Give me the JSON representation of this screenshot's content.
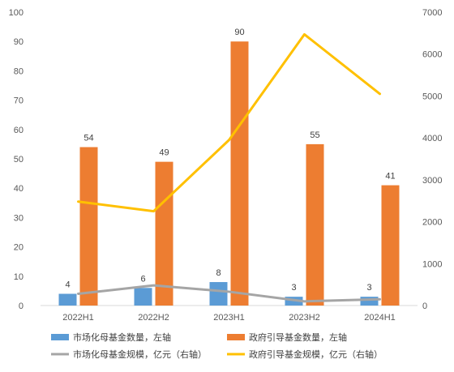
{
  "chart_data": {
    "type": "bar",
    "categories": [
      "2022H1",
      "2022H2",
      "2023H1",
      "2023H2",
      "2024H1"
    ],
    "series": [
      {
        "name": "市场化母基金数量，左轴",
        "type": "bar",
        "axis": "left",
        "color": "#5B9BD5",
        "values": [
          4,
          6,
          8,
          3,
          3
        ]
      },
      {
        "name": "政府引导基金数量，左轴",
        "type": "bar",
        "axis": "left",
        "color": "#ED7D31",
        "values": [
          54,
          49,
          90,
          55,
          41
        ]
      },
      {
        "name": "市场化母基金规模，亿元（右轴）",
        "type": "line",
        "axis": "right",
        "color": "#A5A5A5",
        "values": [
          280,
          480,
          330,
          100,
          150
        ]
      },
      {
        "name": "政府引导基金规模，亿元（右轴）",
        "type": "line",
        "axis": "right",
        "color": "#FFC000",
        "values": [
          2480,
          2250,
          3950,
          6470,
          5050
        ]
      }
    ],
    "left_axis": {
      "ylim": [
        0,
        100
      ],
      "ticks": [
        "0",
        "10",
        "20",
        "30",
        "40",
        "50",
        "60",
        "70",
        "80",
        "90",
        "100"
      ]
    },
    "right_axis": {
      "ylim": [
        0,
        7000
      ],
      "ticks": [
        "0",
        "1000",
        "2000",
        "3000",
        "4000",
        "5000",
        "6000",
        "7000"
      ]
    },
    "bar_data_labels": [
      [
        "4",
        "6",
        "8",
        "3",
        "3"
      ],
      [
        "54",
        "49",
        "90",
        "55",
        "41"
      ]
    ],
    "grid": false,
    "legend_position": "bottom"
  }
}
